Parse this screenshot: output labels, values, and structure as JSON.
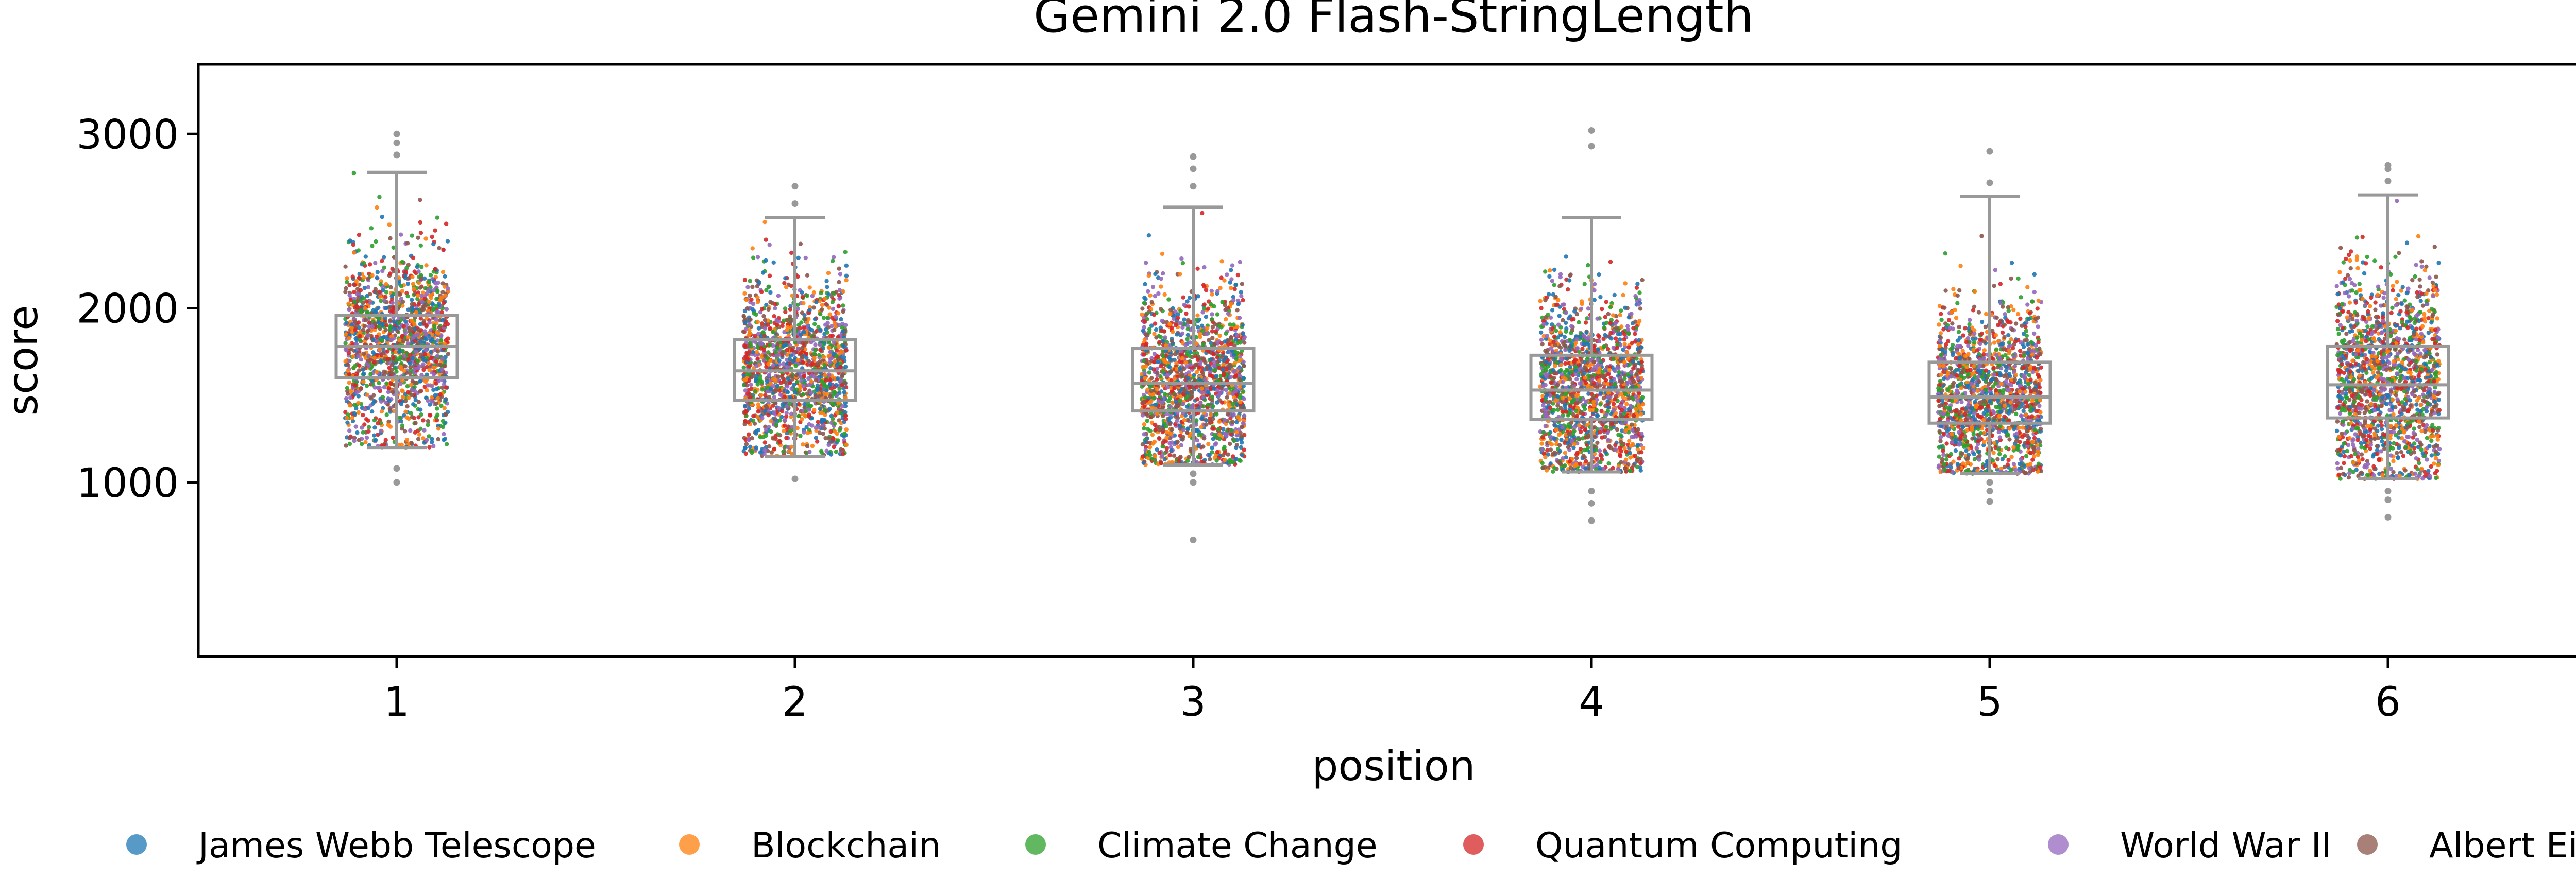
{
  "chart_data": {
    "type": "box",
    "title": "Gemini 2.0 Flash-StringLength",
    "xlabel": "position",
    "ylabel": "score",
    "categories": [
      "1",
      "2",
      "3",
      "4",
      "5",
      "6"
    ],
    "ylim": [
      0,
      3400
    ],
    "yticks": [
      1000,
      2000,
      3000
    ],
    "grid": false,
    "legend_position": "bottom",
    "boxes": [
      {
        "position": "1",
        "whisker_low": 1200,
        "q1": 1600,
        "median": 1780,
        "q3": 1960,
        "whisker_high": 2780,
        "outliers": [
          1000,
          1080,
          2880,
          2950,
          3000
        ]
      },
      {
        "position": "2",
        "whisker_low": 1150,
        "q1": 1470,
        "median": 1640,
        "q3": 1820,
        "whisker_high": 2520,
        "outliers": [
          1020,
          2600,
          2700
        ]
      },
      {
        "position": "3",
        "whisker_low": 1100,
        "q1": 1410,
        "median": 1570,
        "q3": 1770,
        "whisker_high": 2580,
        "outliers": [
          670,
          1000,
          1050,
          2700,
          2800,
          2870
        ]
      },
      {
        "position": "4",
        "whisker_low": 1060,
        "q1": 1360,
        "median": 1530,
        "q3": 1730,
        "whisker_high": 2520,
        "outliers": [
          780,
          880,
          950,
          2930,
          3020
        ]
      },
      {
        "position": "5",
        "whisker_low": 1050,
        "q1": 1340,
        "median": 1490,
        "q3": 1690,
        "whisker_high": 2640,
        "outliers": [
          890,
          950,
          1000,
          2720,
          2900
        ]
      },
      {
        "position": "6",
        "whisker_low": 1020,
        "q1": 1370,
        "median": 1560,
        "q3": 1780,
        "whisker_high": 2650,
        "outliers": [
          800,
          900,
          950,
          2730,
          2800,
          2820
        ]
      }
    ],
    "series": [
      {
        "name": "James Webb Telescope",
        "color": "#1f77b4"
      },
      {
        "name": "Blockchain",
        "color": "#ff7f0e"
      },
      {
        "name": "Climate Change",
        "color": "#2ca02c"
      },
      {
        "name": "Quantum Computing",
        "color": "#d62728"
      },
      {
        "name": "World War II",
        "color": "#9467bd"
      },
      {
        "name": "Albert Einstein",
        "color": "#8c564b"
      }
    ],
    "box_color": "#999999"
  }
}
